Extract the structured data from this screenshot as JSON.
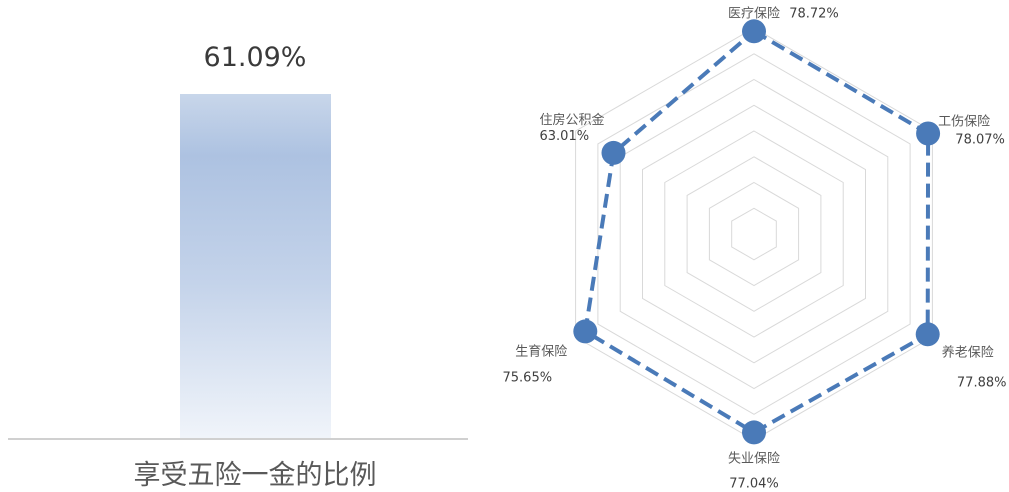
{
  "chart_data": [
    {
      "type": "bar",
      "categories": [
        "享受五险一金的比例"
      ],
      "values": [
        61.09
      ],
      "value_labels": [
        "61.09%"
      ],
      "ylim": [
        0,
        100
      ],
      "colors": {
        "bar_top": "#c8d6ea",
        "bar_mid": "#adc2e1",
        "bar_bottom": "#f0f4fa",
        "baseline": "#d0d0d0"
      }
    },
    {
      "type": "radar",
      "axes": [
        "医疗保险",
        "工伤保险",
        "养老保险",
        "失业保险",
        "生育保险",
        "住房公积金"
      ],
      "values": [
        78.72,
        78.07,
        77.88,
        77.04,
        75.65,
        63.01
      ],
      "value_labels": [
        "78.72%",
        "78.07%",
        "77.88%",
        "77.04%",
        "75.65%",
        "63.01%"
      ],
      "range": [
        0,
        80
      ],
      "grid_rings": 8,
      "line_style": "dashed",
      "colors": {
        "series": "#4a7ab8",
        "grid": "#d9d9d9"
      }
    }
  ]
}
